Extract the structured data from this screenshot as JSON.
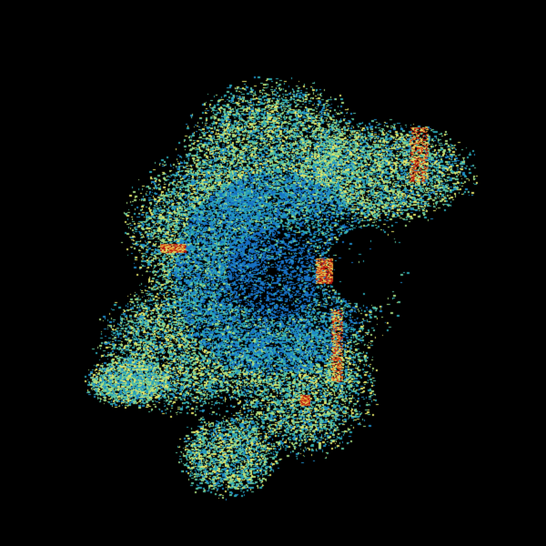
{
  "visualization": {
    "kind": "point-cloud-density-rendering",
    "background": "#000000",
    "palette": [
      "#1670c4",
      "#1e8cc8",
      "#2aa8b4",
      "#5cc4a0",
      "#a8dc80",
      "#e4e468",
      "#e89a30",
      "#d04418",
      "#b01010"
    ]
  }
}
